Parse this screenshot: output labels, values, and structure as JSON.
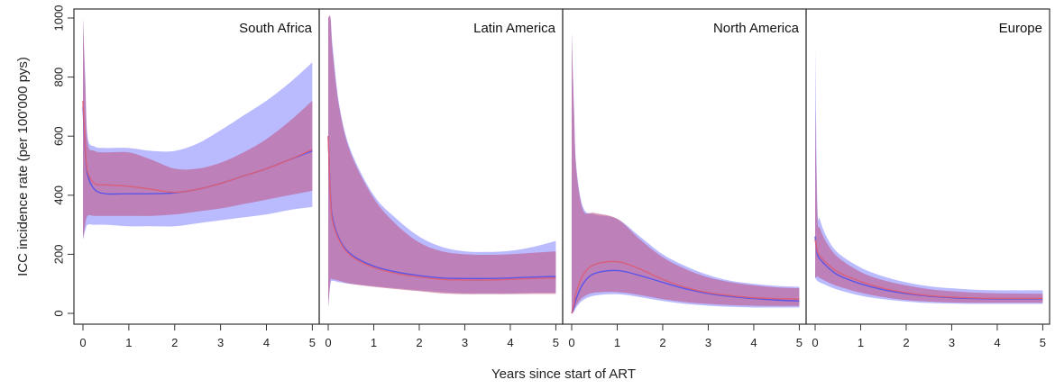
{
  "chart_data": {
    "type": "area",
    "xlabel": "Years since start of ART",
    "ylabel": "ICC incidence rate (per 100'000 pys)",
    "ylim": [
      0,
      1000
    ],
    "xlim": [
      0,
      5
    ],
    "yticks": [
      0,
      200,
      400,
      600,
      800,
      1000
    ],
    "xticks": [
      0,
      1,
      2,
      3,
      4,
      5
    ],
    "grid": false,
    "colors": {
      "blue_band": "#8c8cff",
      "red_band": "#c05a8a",
      "blue_line": "#5a55e8",
      "red_line": "#d8607a"
    },
    "x": [
      0,
      0.05,
      0.1,
      0.25,
      0.5,
      1,
      1.5,
      2,
      2.5,
      3,
      3.5,
      4,
      4.5,
      5
    ],
    "panels": [
      {
        "title": "South Africa",
        "series": [
          {
            "band": "blue",
            "upper": [
              1000,
              800,
              600,
              565,
              560,
              560,
              550,
              550,
              575,
              620,
              670,
              720,
              780,
              850
            ],
            "lower": [
              250,
              280,
              300,
              300,
              300,
              295,
              295,
              295,
              305,
              315,
              325,
              335,
              350,
              360
            ],
            "line": [
              700,
              550,
              470,
              420,
              405,
              405,
              405,
              408,
              420,
              440,
              465,
              490,
              520,
              550
            ]
          },
          {
            "band": "red",
            "upper": [
              1000,
              780,
              580,
              550,
              545,
              545,
              520,
              490,
              490,
              510,
              545,
              590,
              650,
              720
            ],
            "lower": [
              250,
              300,
              330,
              330,
              330,
              330,
              330,
              335,
              345,
              355,
              370,
              385,
              400,
              415
            ],
            "line": [
              720,
              560,
              480,
              440,
              435,
              430,
              420,
              410,
              420,
              440,
              465,
              490,
              520,
              555
            ]
          }
        ]
      },
      {
        "title": "Latin America",
        "series": [
          {
            "band": "blue",
            "upper": [
              1000,
              1000,
              900,
              700,
              550,
              400,
              320,
              260,
              225,
              210,
              208,
              212,
              225,
              245
            ],
            "lower": [
              20,
              100,
              110,
              105,
              100,
              92,
              85,
              78,
              72,
              68,
              68,
              68,
              70,
              70
            ],
            "line": [
              600,
              400,
              320,
              250,
              200,
              160,
              140,
              128,
              120,
              118,
              118,
              120,
              123,
              125
            ]
          },
          {
            "band": "red",
            "upper": [
              1000,
              1000,
              880,
              690,
              540,
              390,
              300,
              240,
              210,
              200,
              198,
              200,
              205,
              210
            ],
            "lower": [
              20,
              110,
              115,
              110,
              100,
              90,
              82,
              75,
              68,
              65,
              65,
              65,
              66,
              66
            ],
            "line": [
              600,
              390,
              310,
              245,
              195,
              155,
              135,
              123,
              115,
              113,
              113,
              115,
              118,
              120
            ]
          }
        ]
      },
      {
        "title": "North America",
        "series": [
          {
            "band": "blue",
            "upper": [
              950,
              700,
              500,
              360,
              335,
              320,
              260,
              200,
              160,
              130,
              110,
              100,
              93,
              90
            ],
            "lower": [
              0,
              5,
              20,
              45,
              60,
              65,
              55,
              42,
              32,
              26,
              22,
              20,
              20,
              20
            ],
            "line": [
              0,
              20,
              50,
              100,
              135,
              145,
              128,
              105,
              83,
              67,
              57,
              50,
              45,
              42
            ]
          },
          {
            "band": "red",
            "upper": [
              950,
              690,
              490,
              350,
              340,
              320,
              250,
              190,
              150,
              122,
              105,
              95,
              88,
              85
            ],
            "lower": [
              0,
              10,
              28,
              55,
              70,
              72,
              62,
              48,
              38,
              32,
              28,
              26,
              25,
              25
            ],
            "line": [
              0,
              30,
              70,
              130,
              165,
              175,
              150,
              115,
              88,
              70,
              60,
              53,
              50,
              48
            ]
          }
        ]
      },
      {
        "title": "Europe",
        "series": [
          {
            "band": "blue",
            "upper": [
              900,
              370,
              320,
              260,
              205,
              155,
              125,
              105,
              92,
              85,
              80,
              78,
              78,
              78
            ],
            "lower": [
              120,
              110,
              105,
              95,
              80,
              60,
              48,
              40,
              35,
              33,
              32,
              32,
              32,
              32
            ],
            "line": [
              260,
              200,
              185,
              160,
              130,
              100,
              80,
              67,
              58,
              53,
              50,
              49,
              49,
              49
            ]
          },
          {
            "band": "red",
            "upper": [
              700,
              330,
              290,
              240,
              190,
              140,
              112,
              95,
              82,
              75,
              70,
              68,
              67,
              66
            ],
            "lower": [
              120,
              125,
              120,
              108,
              92,
              70,
              55,
              45,
              40,
              37,
              36,
              36,
              36,
              36
            ],
            "line": [
              250,
              210,
              195,
              170,
              140,
              108,
              85,
              70,
              60,
              55,
              52,
              51,
              51,
              51
            ]
          }
        ]
      }
    ]
  }
}
